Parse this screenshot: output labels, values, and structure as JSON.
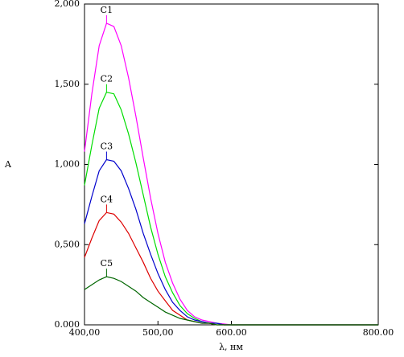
{
  "chart_data": {
    "type": "line",
    "x_label": "λ, нм",
    "y_label": "A",
    "x": [
      400,
      410,
      420,
      430,
      440,
      450,
      460,
      470,
      480,
      490,
      500,
      510,
      520,
      530,
      540,
      550,
      560,
      570,
      580,
      590,
      600,
      700,
      800
    ],
    "series": [
      {
        "name": "C1",
        "color": "#ff00ff",
        "values": [
          1.08,
          1.44,
          1.74,
          1.88,
          1.86,
          1.74,
          1.54,
          1.3,
          1.04,
          0.79,
          0.57,
          0.39,
          0.26,
          0.16,
          0.09,
          0.05,
          0.03,
          0.02,
          0.01,
          0.005,
          0,
          0,
          0
        ]
      },
      {
        "name": "C2",
        "color": "#00dd00",
        "values": [
          0.87,
          1.12,
          1.35,
          1.45,
          1.44,
          1.34,
          1.19,
          1.01,
          0.81,
          0.61,
          0.44,
          0.3,
          0.2,
          0.12,
          0.07,
          0.04,
          0.02,
          0.01,
          0.01,
          0,
          0,
          0,
          0
        ]
      },
      {
        "name": "C3",
        "color": "#0000cc",
        "values": [
          0.63,
          0.8,
          0.96,
          1.03,
          1.02,
          0.96,
          0.85,
          0.72,
          0.57,
          0.44,
          0.32,
          0.22,
          0.14,
          0.09,
          0.05,
          0.03,
          0.02,
          0.01,
          0.01,
          0,
          0,
          0,
          0
        ]
      },
      {
        "name": "C4",
        "color": "#dd0000",
        "values": [
          0.42,
          0.54,
          0.65,
          0.7,
          0.69,
          0.64,
          0.57,
          0.48,
          0.39,
          0.29,
          0.21,
          0.15,
          0.09,
          0.06,
          0.03,
          0.02,
          0.01,
          0.01,
          0,
          0,
          0,
          0,
          0
        ]
      },
      {
        "name": "C5",
        "color": "#006600",
        "values": [
          0.22,
          0.25,
          0.28,
          0.3,
          0.29,
          0.27,
          0.24,
          0.21,
          0.17,
          0.14,
          0.11,
          0.08,
          0.06,
          0.04,
          0.03,
          0.02,
          0.01,
          0.01,
          0,
          0,
          0,
          0,
          0
        ]
      }
    ],
    "xlim": [
      400,
      800
    ],
    "xticks": [
      {
        "value": 400,
        "label": "400,00"
      },
      {
        "value": 500,
        "label": "500,00"
      },
      {
        "value": 600,
        "label": "600.00"
      },
      {
        "value": 800,
        "label": "800.00"
      }
    ],
    "ylim": [
      0,
      2
    ],
    "yticks": [
      {
        "value": 0,
        "label": "0.000"
      },
      {
        "value": 0.5,
        "label": "0,500"
      },
      {
        "value": 1,
        "label": "1,000"
      },
      {
        "value": 1.5,
        "label": "1,500"
      },
      {
        "value": 2,
        "label": "2,000"
      }
    ]
  }
}
